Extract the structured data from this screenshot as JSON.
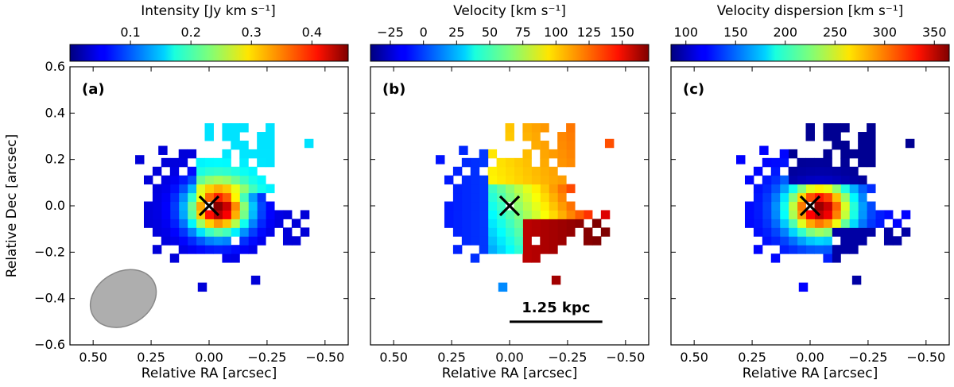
{
  "chart_data": [
    {
      "type": "heatmap",
      "panel_label": "(a)",
      "colorbar": {
        "label": "Intensity [Jy km s⁻¹]",
        "range": [
          0.0,
          0.46
        ],
        "ticks": [
          0.1,
          0.2,
          0.3,
          0.4
        ],
        "tick_labels": [
          "0.1",
          "0.2",
          "0.3",
          "0.4"
        ],
        "colormap": "jet"
      },
      "xlabel": "Relative RA [arcsec]",
      "ylabel": "Relative Dec [arcsec]",
      "xlim": [
        0.6,
        -0.6
      ],
      "ylim": [
        -0.6,
        0.6
      ],
      "xticks": [
        0.5,
        0.25,
        0.0,
        -0.25,
        -0.5
      ],
      "xtick_labels": [
        "0.50",
        "0.25",
        "0.00",
        "−0.25",
        "−0.50"
      ],
      "yticks": [
        0.6,
        0.4,
        0.2,
        0.0,
        -0.2,
        -0.4,
        -0.6
      ],
      "ytick_labels": [
        "0.6",
        "0.4",
        "0.2",
        "0.0",
        "−0.2",
        "−0.4",
        "−0.6"
      ],
      "center_marker": {
        "symbol": "x",
        "ra": 0.0,
        "dec": 0.0
      },
      "beam": {
        "ra": 0.37,
        "dec": -0.4,
        "major_arcsec": 0.3,
        "minor_arcsec": 0.23,
        "pa_deg": 30,
        "color": "#a0a0a0"
      }
    },
    {
      "type": "heatmap",
      "panel_label": "(b)",
      "colorbar": {
        "label": "Velocity [km s⁻¹]",
        "range": [
          -40,
          170
        ],
        "ticks": [
          -25,
          0,
          25,
          50,
          75,
          100,
          125,
          150
        ],
        "tick_labels": [
          "−25",
          "0",
          "25",
          "50",
          "75",
          "100",
          "125",
          "150"
        ],
        "colormap": "jet"
      },
      "xlabel": "Relative RA [arcsec]",
      "ylabel": "",
      "xlim": [
        0.6,
        -0.6
      ],
      "ylim": [
        -0.6,
        0.6
      ],
      "xticks": [
        0.5,
        0.25,
        0.0,
        -0.25,
        -0.5
      ],
      "xtick_labels": [
        "0.50",
        "0.25",
        "0.00",
        "−0.25",
        "−0.50"
      ],
      "yticks": [
        0.6,
        0.4,
        0.2,
        0.0,
        -0.2,
        -0.4,
        -0.6
      ],
      "center_marker": {
        "symbol": "x",
        "ra": 0.0,
        "dec": 0.0
      },
      "scale_bar": {
        "label": "1.25 kpc",
        "ra_start": 0.0,
        "ra_end": -0.4,
        "dec": -0.5
      }
    },
    {
      "type": "heatmap",
      "panel_label": "(c)",
      "colorbar": {
        "label": "Velocity dispersion [km s⁻¹]",
        "range": [
          85,
          365
        ],
        "ticks": [
          100,
          150,
          200,
          250,
          300,
          350
        ],
        "tick_labels": [
          "100",
          "150",
          "200",
          "250",
          "300",
          "350"
        ],
        "colormap": "jet"
      },
      "xlabel": "Relative RA [arcsec]",
      "ylabel": "",
      "xlim": [
        0.6,
        -0.6
      ],
      "ylim": [
        -0.6,
        0.6
      ],
      "xticks": [
        0.5,
        0.25,
        0.0,
        -0.25,
        -0.5
      ],
      "xtick_labels": [
        "0.50",
        "0.25",
        "0.00",
        "−0.25",
        "−0.50"
      ],
      "yticks": [
        0.6,
        0.4,
        0.2,
        0.0,
        -0.2,
        -0.4,
        -0.6
      ],
      "center_marker": {
        "symbol": "x",
        "ra": 0.0,
        "dec": 0.0
      }
    }
  ]
}
